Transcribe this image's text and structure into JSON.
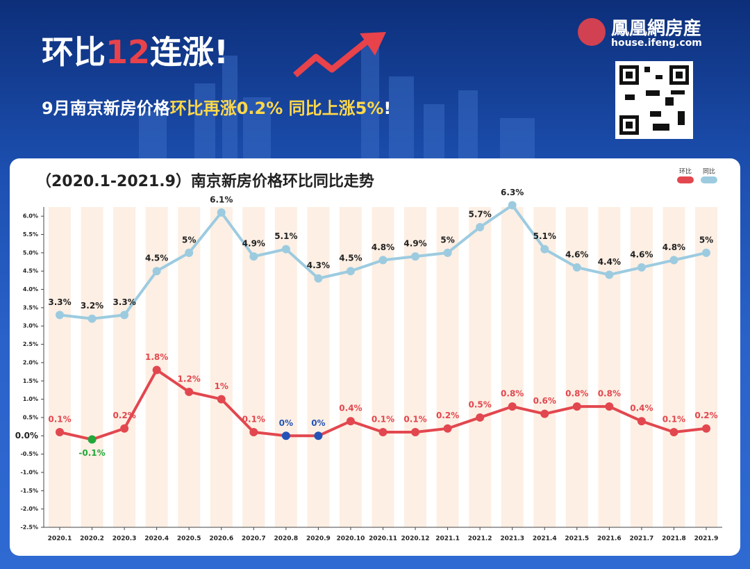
{
  "header": {
    "headline": [
      "环比",
      "12",
      "连涨!"
    ],
    "subtitle": [
      "9月南京新房价格",
      "环比再涨0.2% 同比上涨5%",
      "!"
    ],
    "logo": "鳳凰網房産",
    "logo_url": "house.ifeng.com"
  },
  "chart_data": {
    "type": "line",
    "title": "（2020.1-2021.9）南京新房价格环比同比走势",
    "categories": [
      "2020.1",
      "2020.2",
      "2020.3",
      "2020.4",
      "2020.5",
      "2020.6",
      "2020.7",
      "2020.8",
      "2020.9",
      "2020.10",
      "2020.11",
      "2020.12",
      "2021.1",
      "2021.2",
      "2021.3",
      "2021.4",
      "2021.5",
      "2021.6",
      "2021.7",
      "2021.8",
      "2021.9"
    ],
    "series": [
      {
        "name": "环比",
        "color": "#e2474f",
        "values": [
          0.1,
          -0.1,
          0.2,
          1.8,
          1.2,
          1,
          0.1,
          0,
          0,
          0.4,
          0.1,
          0.1,
          0.2,
          0.5,
          0.8,
          0.6,
          0.8,
          0.8,
          0.4,
          0.1,
          0.2
        ],
        "value_labels": [
          "0.1%",
          "-0.1%",
          "0.2%",
          "1.8%",
          "1.2%",
          "1%",
          "0.1%",
          "0%",
          "0%",
          "0.4%",
          "0.1%",
          "0.1%",
          "0.2%",
          "0.5%",
          "0.8%",
          "0.6%",
          "0.8%",
          "0.8%",
          "0.4%",
          "0.1%",
          "0.2%"
        ],
        "point_colors": [
          null,
          "#22a83a",
          null,
          null,
          null,
          null,
          null,
          "#2453b8",
          "#2453b8",
          null,
          null,
          null,
          null,
          null,
          null,
          null,
          null,
          null,
          null,
          null,
          null
        ]
      },
      {
        "name": "同比",
        "color": "#9ccbe0",
        "values": [
          3.3,
          3.2,
          3.3,
          4.5,
          5,
          6.1,
          4.9,
          5.1,
          4.3,
          4.5,
          4.8,
          4.9,
          5,
          5.7,
          6.3,
          5.1,
          4.6,
          4.4,
          4.6,
          4.8,
          5
        ],
        "value_labels": [
          "3.3%",
          "3.2%",
          "3.3%",
          "4.5%",
          "5%",
          "6.1%",
          "4.9%",
          "5.1%",
          "4.3%",
          "4.5%",
          "4.8%",
          "4.9%",
          "5%",
          "5.7%",
          "6.3%",
          "5.1%",
          "4.6%",
          "4.4%",
          "4.6%",
          "4.8%",
          "5%"
        ]
      }
    ],
    "ylim": [
      -2.5,
      6.25
    ],
    "yticks": [
      {
        "value": -2.5,
        "label": "-2.5%"
      },
      {
        "value": -2,
        "label": "-2.0%"
      },
      {
        "value": -1.5,
        "label": "-1.5%"
      },
      {
        "value": -1,
        "label": "-1.0%"
      },
      {
        "value": -0.5,
        "label": "-0.5%"
      },
      {
        "value": 0,
        "label": "0.0%"
      },
      {
        "value": 0.5,
        "label": "0.5%"
      },
      {
        "value": 1,
        "label": "1.0%"
      },
      {
        "value": 1.5,
        "label": "1.5%"
      },
      {
        "value": 2,
        "label": "2.0%"
      },
      {
        "value": 2.5,
        "label": "2.5%"
      },
      {
        "value": 3,
        "label": "3.0%"
      },
      {
        "value": 3.5,
        "label": "3.5%"
      },
      {
        "value": 4,
        "label": "4.0%"
      },
      {
        "value": 4.5,
        "label": "4.5%"
      },
      {
        "value": 5,
        "label": "5.0%"
      },
      {
        "value": 5.5,
        "label": "5.5%"
      },
      {
        "value": 6,
        "label": "6.0%"
      }
    ],
    "legend": "top-right",
    "grid": false
  }
}
